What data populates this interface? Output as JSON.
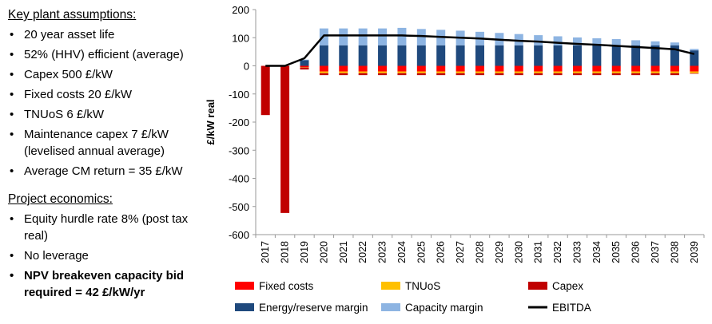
{
  "text_panel": {
    "assumptions_heading": "Key plant assumptions:",
    "assumptions": [
      "20 year asset life",
      "52% (HHV) efficient (average)",
      "Capex 500 £/kW",
      "Fixed costs 20 £/kW",
      "TNUoS 6 £/kW",
      "Maintenance capex 7 £/kW (levelised annual average)",
      "Average CM return = 35 £/kW"
    ],
    "economics_heading": "Project economics:",
    "economics": [
      "Equity hurdle rate 8% (post tax real)",
      "No leverage",
      "NPV breakeven capacity bid required = 42 £/kW/yr"
    ]
  },
  "chart_data": {
    "type": "bar",
    "ylabel": "£/kW real",
    "ylim": [
      -600,
      200
    ],
    "yticks": [
      200,
      100,
      0,
      -100,
      -200,
      -300,
      -400,
      -500,
      -600
    ],
    "categories": [
      "2017",
      "2018",
      "2019",
      "2020",
      "2021",
      "2022",
      "2023",
      "2024",
      "2025",
      "2026",
      "2027",
      "2028",
      "2029",
      "2030",
      "2031",
      "2032",
      "2033",
      "2034",
      "2035",
      "2036",
      "2037",
      "2038",
      "2039"
    ],
    "legend_position": "bottom",
    "series": [
      {
        "name": "Fixed costs",
        "color": "#ff0000",
        "kind": "bar",
        "values": [
          0,
          0,
          -5,
          -20,
          -20,
          -20,
          -20,
          -20,
          -20,
          -20,
          -20,
          -20,
          -20,
          -20,
          -20,
          -20,
          -20,
          -20,
          -20,
          -20,
          -20,
          -20,
          -20
        ]
      },
      {
        "name": "TNUoS",
        "color": "#ffc000",
        "kind": "bar",
        "values": [
          0,
          0,
          -1,
          -6,
          -6,
          -6,
          -6,
          -6,
          -6,
          -6,
          -6,
          -6,
          -6,
          -6,
          -6,
          -6,
          -6,
          -6,
          -6,
          -6,
          -6,
          -6,
          -6
        ]
      },
      {
        "name": "Capex",
        "color": "#c00000",
        "kind": "bar",
        "values": [
          -175,
          -523,
          -7,
          -7,
          -7,
          -7,
          -7,
          -7,
          -7,
          -7,
          -7,
          -7,
          -7,
          -7,
          -7,
          -7,
          -7,
          -7,
          -7,
          -7,
          -7,
          -7,
          -2
        ]
      },
      {
        "name": "Energy/reserve margin",
        "color": "#1f497d",
        "kind": "bar",
        "values": [
          0,
          0,
          20,
          73,
          73,
          73,
          73,
          73,
          73,
          73,
          73,
          73,
          73,
          73,
          73,
          73,
          73,
          73,
          73,
          73,
          73,
          73,
          55
        ]
      },
      {
        "name": "Capacity margin",
        "color": "#8db4e2",
        "kind": "bar",
        "values": [
          0,
          0,
          2,
          60,
          60,
          60,
          60,
          62,
          58,
          55,
          52,
          48,
          44,
          40,
          36,
          32,
          28,
          25,
          22,
          18,
          14,
          10,
          5
        ]
      },
      {
        "name": "EBITDA",
        "color": "#000000",
        "kind": "line",
        "values": [
          0,
          0,
          27,
          108,
          108,
          108,
          108,
          108,
          106,
          103,
          100,
          97,
          93,
          89,
          86,
          82,
          78,
          75,
          71,
          67,
          63,
          59,
          42
        ]
      }
    ]
  }
}
